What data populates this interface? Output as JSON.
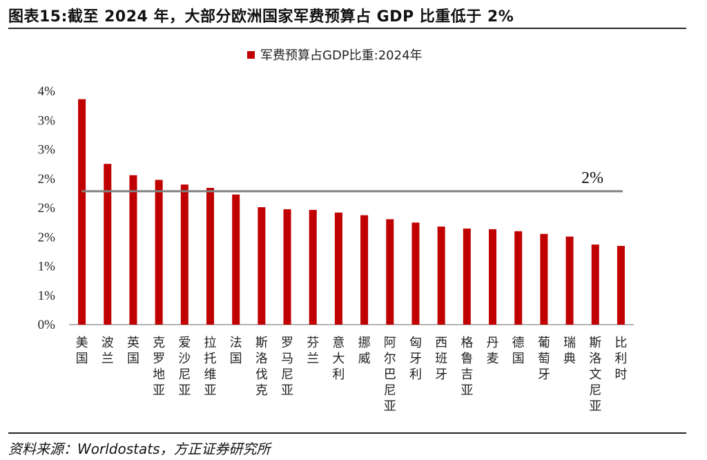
{
  "header": {
    "title": "图表15:截至 2024 年，大部分欧洲国家军费预算占 GDP 比重低于 2%"
  },
  "footer": {
    "source": "资料来源：Worldostats，方正证券研究所"
  },
  "colors": {
    "bar": "#c00000",
    "reference_line": "#808080",
    "axis": "#999999"
  },
  "chart_data": {
    "type": "bar",
    "categories": [
      "美国",
      "波兰",
      "英国",
      "克罗地亚",
      "爱沙尼亚",
      "拉托维亚",
      "法国",
      "斯洛伐克",
      "罗马尼亚",
      "芬兰",
      "意大利",
      "挪威",
      "阿尔巴尼亚",
      "匈牙利",
      "西班牙",
      "格鲁吉亚",
      "丹麦",
      "德国",
      "葡萄牙",
      "瑞典",
      "斯洛文尼亚",
      "比利时"
    ],
    "series": [
      {
        "name": "军费预算占GDP比重:2024年",
        "values": [
          3.38,
          2.41,
          2.24,
          2.17,
          2.1,
          2.05,
          1.95,
          1.76,
          1.73,
          1.72,
          1.68,
          1.64,
          1.58,
          1.53,
          1.47,
          1.44,
          1.43,
          1.4,
          1.36,
          1.32,
          1.2,
          1.18
        ]
      }
    ],
    "reference_line": {
      "value": 2.0,
      "label": "2%"
    },
    "yticks": [
      "0%",
      "1%",
      "1%",
      "2%",
      "2%",
      "2%",
      "3%",
      "3%",
      "4%"
    ],
    "ylim": [
      0,
      3.5
    ],
    "legend_position": "top-center",
    "grid": false
  }
}
